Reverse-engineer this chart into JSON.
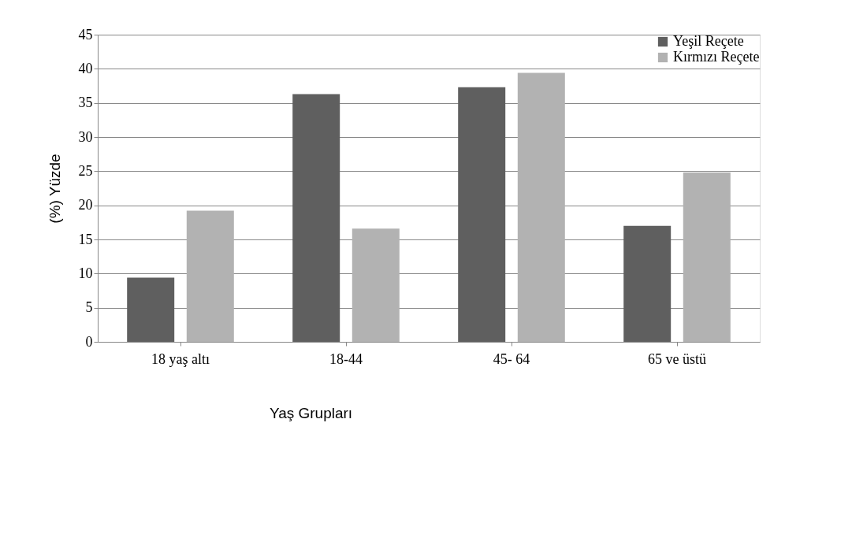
{
  "chart_data": {
    "type": "bar",
    "xlabel": "Yaş Grupları",
    "ylabel": "(%) Yüzde",
    "categories": [
      "18 yaş altı",
      "18-44",
      "45- 64",
      "65 ve üstü"
    ],
    "series": [
      {
        "name": "Yeşil Reçete",
        "color": "#5f5f5f",
        "values": [
          9.4,
          36.3,
          37.3,
          17.0
        ]
      },
      {
        "name": "Kırmızı Reçete",
        "color": "#b2b2b2",
        "values": [
          19.2,
          16.6,
          39.4,
          24.8
        ]
      }
    ],
    "ylim": [
      0,
      45
    ],
    "yticks": [
      0,
      5,
      10,
      15,
      20,
      25,
      30,
      35,
      40,
      45
    ],
    "grid": "y",
    "legend": "top right"
  }
}
